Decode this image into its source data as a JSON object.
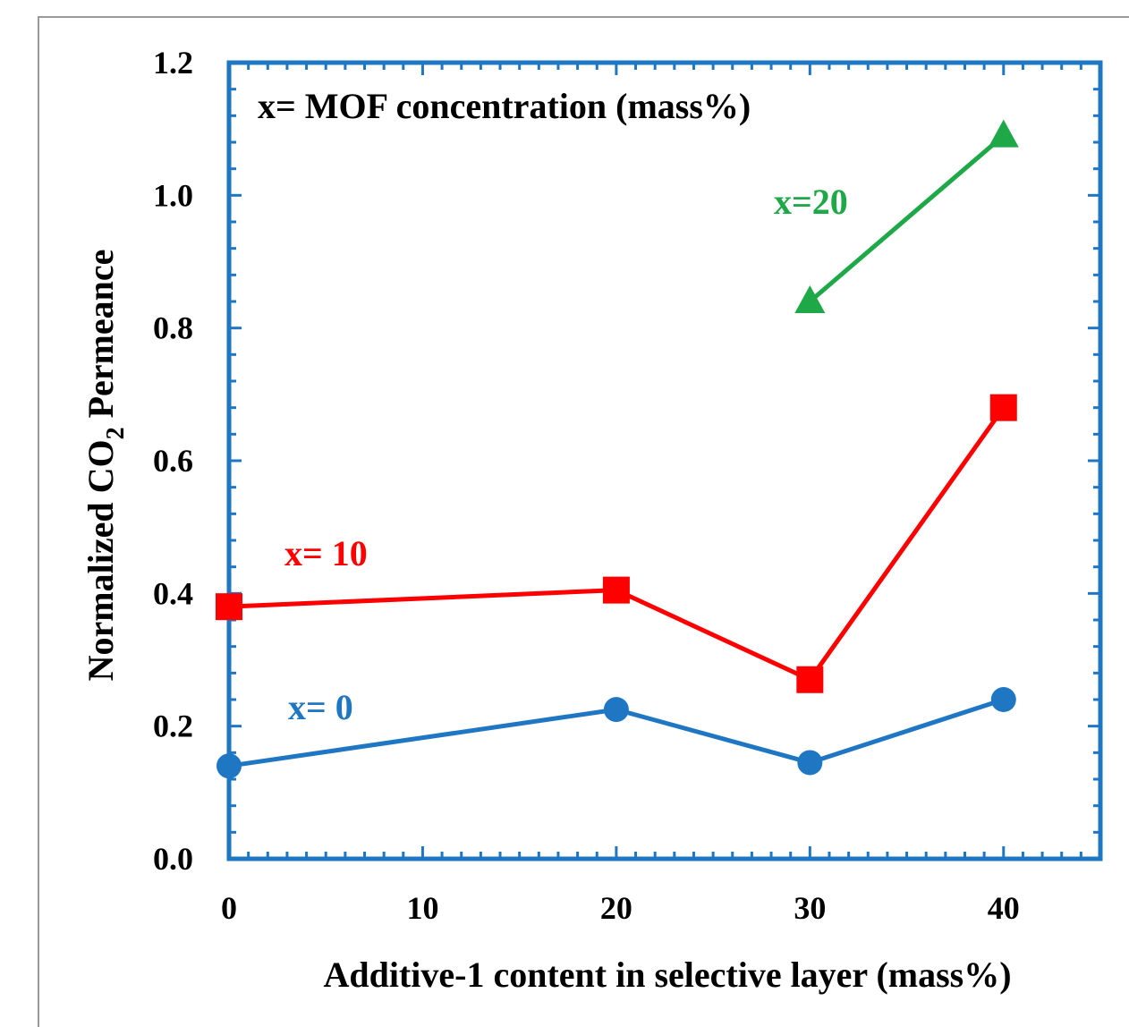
{
  "chart_data": {
    "type": "line",
    "annotation": "x= MOF concentration (mass%)",
    "xlabel": "Additive-1 content in selective layer (mass%)",
    "ylabel_pre": "Normalized  CO",
    "ylabel_sub": "2",
    "ylabel_post": " Permeance",
    "xlim": [
      0,
      45
    ],
    "ylim": [
      0,
      1.2
    ],
    "x_ticks": [
      0,
      10,
      20,
      30,
      40
    ],
    "x_tick_labels": [
      "0",
      "10",
      "20",
      "30",
      "40"
    ],
    "y_ticks": [
      0.0,
      0.2,
      0.4,
      0.6,
      0.8,
      1.0,
      1.2
    ],
    "y_tick_labels": [
      "0.0",
      "0.2",
      "0.4",
      "0.6",
      "0.8",
      "1.0",
      "1.2"
    ],
    "series": [
      {
        "name": "x= 0",
        "marker": "circle",
        "color": "#1f77c4",
        "x": [
          0,
          20,
          30,
          40
        ],
        "y": [
          0.14,
          0.225,
          0.145,
          0.24
        ]
      },
      {
        "name": "x= 10",
        "marker": "square",
        "color": "#ff0000",
        "x": [
          0,
          20,
          30,
          40
        ],
        "y": [
          0.38,
          0.405,
          0.27,
          0.68
        ]
      },
      {
        "name": "x=20",
        "marker": "triangle",
        "color": "#1fa847",
        "x": [
          30,
          40
        ],
        "y": [
          0.84,
          1.09
        ]
      }
    ],
    "frame_color": "#1f77c4"
  }
}
